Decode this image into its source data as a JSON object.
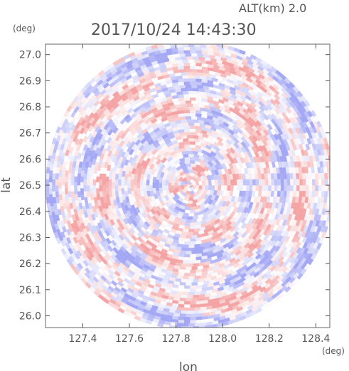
{
  "header": {
    "altitude_label": "ALT(km) 2.0",
    "timestamp": "2017/10/24 14:43:30"
  },
  "chart_data": {
    "type": "heatmap",
    "description_kind": "radar PPI-style polar scan rendered on lon/lat grid",
    "xlabel": "lon",
    "ylabel": "lat",
    "x_unit": "(deg)",
    "y_unit": "(deg)",
    "xlim": [
      127.24,
      128.46
    ],
    "ylim": [
      25.955,
      27.04
    ],
    "x_ticks": [
      "127.4",
      "127.6",
      "127.8",
      "128.0",
      "128.2",
      "128.4"
    ],
    "y_ticks": [
      "26.0",
      "26.1",
      "26.2",
      "26.3",
      "26.4",
      "26.5",
      "26.6",
      "26.7",
      "26.8",
      "26.9",
      "27.0"
    ],
    "x_tick_values": [
      127.4,
      127.6,
      127.8,
      128.0,
      128.2,
      128.4
    ],
    "y_tick_values": [
      26.0,
      26.1,
      26.2,
      26.3,
      26.4,
      26.5,
      26.6,
      26.7,
      26.8,
      26.9,
      27.0
    ],
    "scan_center": {
      "lon": 127.86,
      "lat": 26.5
    },
    "scan_radius_deg": 0.62,
    "colors": {
      "positive": "#f4a4a4",
      "negative": "#a4a8f4",
      "background": "#ffffff",
      "axis": "#555555"
    }
  }
}
